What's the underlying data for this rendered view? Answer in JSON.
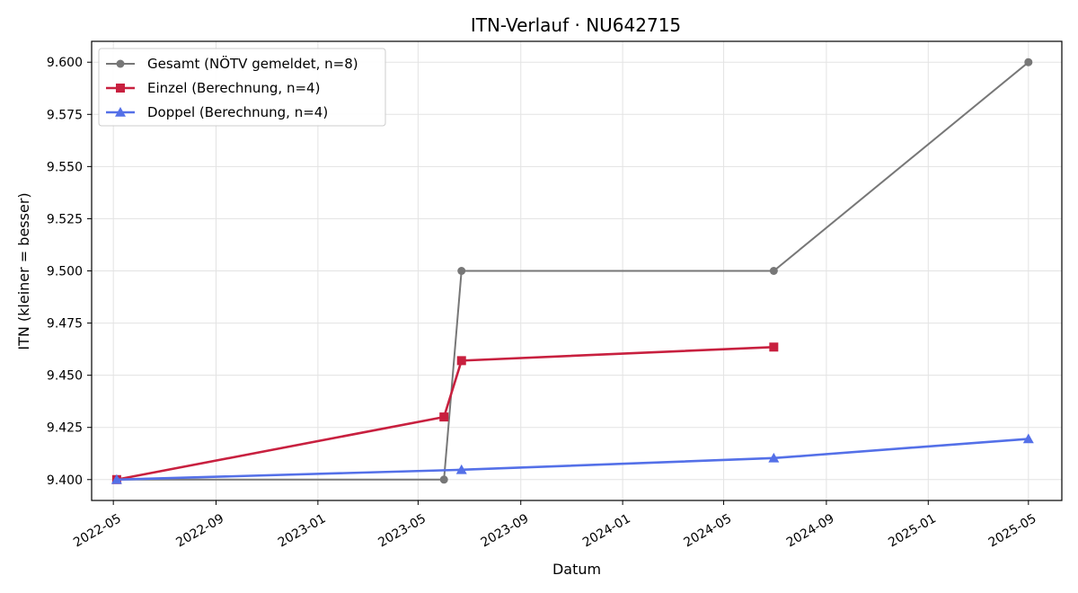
{
  "chart_data": {
    "type": "line",
    "title": "ITN-Verlauf · NU642715",
    "xlabel": "Datum",
    "ylabel": "ITN  (kleiner = besser)",
    "x_ticks": [
      "2022-05",
      "2022-09",
      "2023-01",
      "2023-05",
      "2023-09",
      "2024-01",
      "2024-05",
      "2024-09",
      "2025-01",
      "2025-05"
    ],
    "y_ticks": [
      "9.400",
      "9.425",
      "9.450",
      "9.475",
      "9.500",
      "9.525",
      "9.550",
      "9.575",
      "9.600"
    ],
    "ylim": [
      9.39,
      9.61
    ],
    "xlim": [
      "2022-04-05",
      "2025-06-10"
    ],
    "grid": true,
    "legend_position": "top-left",
    "series": [
      {
        "name": "Gesamt (NÖTV gemeldet, n=8)",
        "color": "#777777",
        "marker": "circle",
        "points": [
          {
            "x": "2022-05-05",
            "y": 9.4
          },
          {
            "x": "2023-06-01",
            "y": 9.4
          },
          {
            "x": "2023-06-22",
            "y": 9.5
          },
          {
            "x": "2024-06-30",
            "y": 9.5
          },
          {
            "x": "2025-05-01",
            "y": 9.6
          }
        ]
      },
      {
        "name": "Einzel (Berechnung, n=4)",
        "color": "#c8203f",
        "marker": "square",
        "points": [
          {
            "x": "2022-05-05",
            "y": 9.4
          },
          {
            "x": "2023-06-01",
            "y": 9.43
          },
          {
            "x": "2023-06-22",
            "y": 9.457
          },
          {
            "x": "2024-06-30",
            "y": 9.4635
          }
        ]
      },
      {
        "name": "Doppel (Berechnung, n=4)",
        "color": "#5470e8",
        "marker": "triangle",
        "points": [
          {
            "x": "2022-05-05",
            "y": 9.4
          },
          {
            "x": "2023-06-22",
            "y": 9.4047
          },
          {
            "x": "2024-06-30",
            "y": 9.4103
          },
          {
            "x": "2025-05-01",
            "y": 9.4195
          }
        ]
      }
    ]
  }
}
